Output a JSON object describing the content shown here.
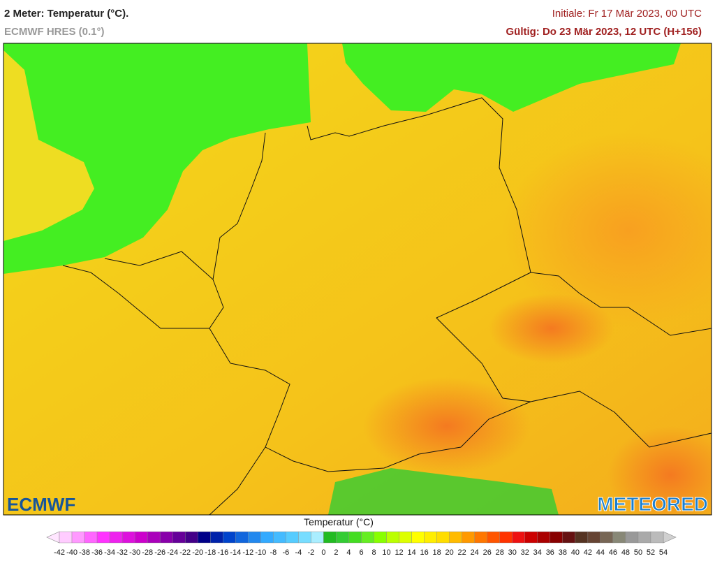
{
  "header": {
    "title": "2 Meter: Temperatur (°C).",
    "subtitle": "ECMWF HRES (0.1°)",
    "init": "Initiale: Fr 17 Mär 2023, 00 UTC",
    "valid": "Gültig: Do 23 Mär 2023, 12 UTC (H+156)"
  },
  "logos": {
    "left": "ECMWF",
    "right": "METEORED"
  },
  "legend": {
    "title": "Temperatur (°C)",
    "ticks": [
      -42,
      -40,
      -38,
      -36,
      -34,
      -32,
      -30,
      -28,
      -26,
      -24,
      -22,
      -20,
      -18,
      -16,
      -14,
      -12,
      -10,
      -8,
      -6,
      -4,
      -2,
      0,
      2,
      4,
      6,
      8,
      10,
      12,
      14,
      16,
      18,
      20,
      22,
      24,
      26,
      28,
      30,
      32,
      34,
      36,
      38,
      40,
      42,
      44,
      46,
      48,
      50,
      52,
      54
    ],
    "colors": [
      "#ffccff",
      "#ff99ff",
      "#ff66ff",
      "#ff33ff",
      "#ee22ee",
      "#dd11dd",
      "#cc00cc",
      "#aa00bb",
      "#8800aa",
      "#660099",
      "#440088",
      "#000088",
      "#0022aa",
      "#0044cc",
      "#1166dd",
      "#2288ee",
      "#33aaff",
      "#44bbff",
      "#55ccff",
      "#77ddff",
      "#aaeeff",
      "#22bb22",
      "#33cc33",
      "#44dd22",
      "#66ee22",
      "#88ff00",
      "#bbff00",
      "#ddff00",
      "#ffff00",
      "#ffee00",
      "#ffdd00",
      "#ffbb00",
      "#ff9900",
      "#ff7700",
      "#ff5500",
      "#ff3300",
      "#ee1111",
      "#cc0000",
      "#aa0000",
      "#880000",
      "#661111",
      "#553322",
      "#664433",
      "#776655",
      "#888877",
      "#999999",
      "#aaaaaa",
      "#bbbbbb"
    ],
    "under_color": "#ffe6ff",
    "over_color": "#d0d0d0"
  }
}
